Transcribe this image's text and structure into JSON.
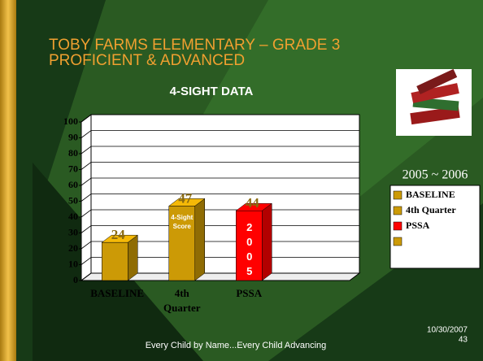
{
  "slide": {
    "title_lines": [
      "TOBY FARMS ELEMENTARY – GRADE 3",
      "PROFICIENT & ADVANCED"
    ],
    "footer": "Every Child by Name...Every Child Advancing",
    "date": "10/30/2007",
    "page": "43"
  },
  "chart_data": {
    "type": "bar",
    "title": "4-SIGHT DATA",
    "categories": [
      "BASELINE",
      "4th Quarter",
      "PSSA",
      null
    ],
    "values": [
      24,
      47,
      44,
      null
    ],
    "colors": [
      "#cc9a06",
      "#cc9a06",
      "#ff0000",
      "#cc9a06"
    ],
    "ylim": [
      0,
      100
    ],
    "yticks": [
      0,
      10,
      20,
      30,
      40,
      50,
      60,
      70,
      80,
      90,
      100
    ],
    "grid": true,
    "legend_title": "2005 ~ 2006",
    "legend_position": "right",
    "annotations": [
      "4-Sight Score",
      "2005"
    ]
  }
}
